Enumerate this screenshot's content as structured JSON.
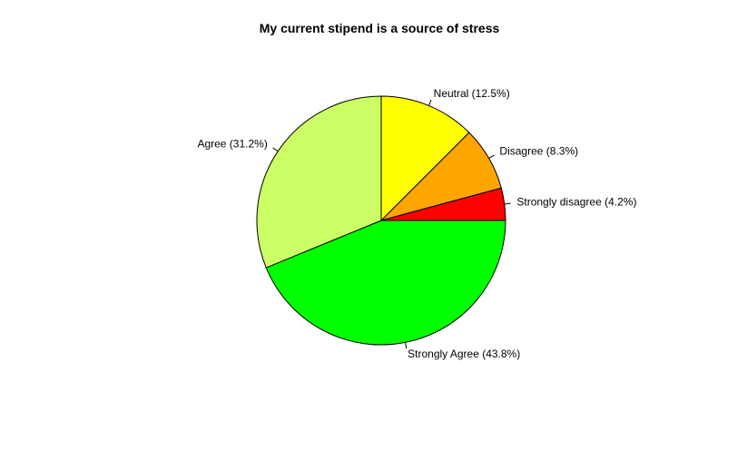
{
  "chart_data": {
    "type": "pie",
    "title": "My current stipend is a source of stress",
    "slices": [
      {
        "name": "Neutral",
        "label": "Neutral (12.5%)",
        "value": 12.5,
        "color": "#FFFF00"
      },
      {
        "name": "Disagree",
        "label": "Disagree (8.3%)",
        "value": 8.3,
        "color": "#FFA500"
      },
      {
        "name": "Strongly disagree",
        "label": "Strongly disagree (4.2%)",
        "value": 4.2,
        "color": "#FF0000"
      },
      {
        "name": "Strongly Agree",
        "label": "Strongly Agree (43.8%)",
        "value": 43.8,
        "color": "#00FF00"
      },
      {
        "name": "Agree",
        "label": "Agree (31.2%)",
        "value": 31.2,
        "color": "#CCFF66"
      }
    ],
    "start_angle_deg": 90,
    "direction": "clockwise",
    "legend": "none"
  }
}
